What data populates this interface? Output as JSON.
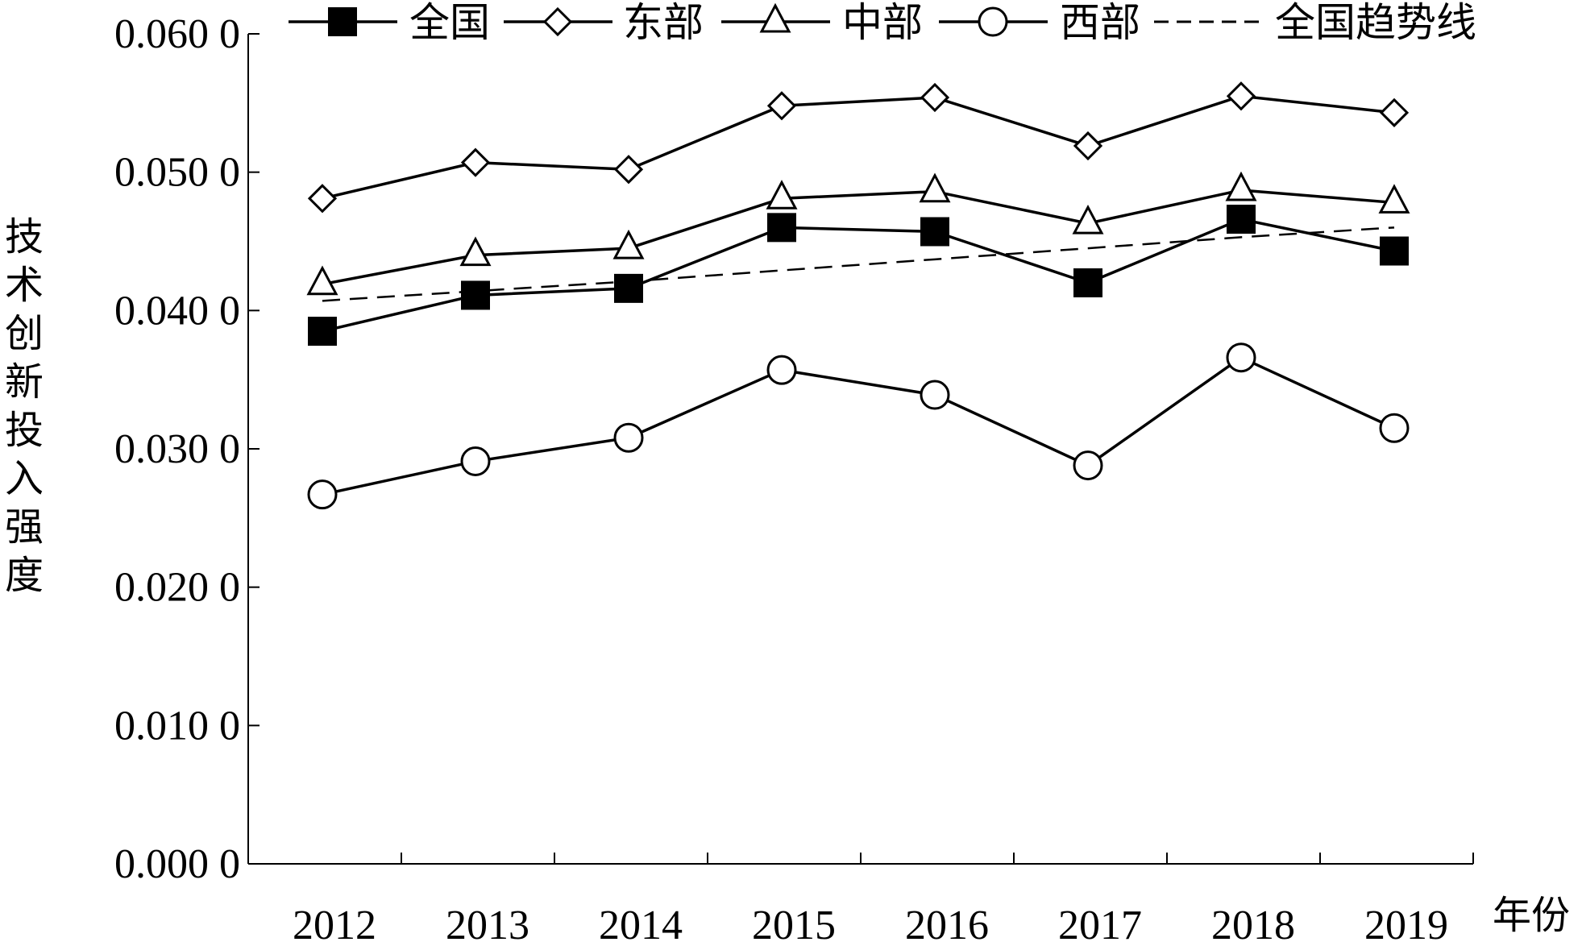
{
  "chart_data": {
    "type": "line",
    "title": "",
    "xlabel": "年份",
    "ylabel": "技术创新投入强度",
    "categories": [
      "2012",
      "2013",
      "2014",
      "2015",
      "2016",
      "2017",
      "2018",
      "2019"
    ],
    "y_tick_labels": [
      "0.000 0",
      "0.010 0",
      "0.020 0",
      "0.030 0",
      "0.040 0",
      "0.050 0",
      "0.060 0"
    ],
    "ylim": [
      0,
      0.06
    ],
    "grid": false,
    "legend_position": "top",
    "series": [
      {
        "name": "全国",
        "marker": "filled-square",
        "style": "solid",
        "values": [
          0.0385,
          0.0411,
          0.0416,
          0.046,
          0.0457,
          0.042,
          0.0466,
          0.0443
        ]
      },
      {
        "name": "东部",
        "marker": "diamond",
        "style": "solid",
        "values": [
          0.0481,
          0.0507,
          0.0502,
          0.0548,
          0.0554,
          0.0519,
          0.0555,
          0.0543
        ]
      },
      {
        "name": "中部",
        "marker": "triangle",
        "style": "solid",
        "values": [
          0.0419,
          0.044,
          0.0445,
          0.0481,
          0.0486,
          0.0463,
          0.0487,
          0.0478
        ]
      },
      {
        "name": "西部",
        "marker": "circle",
        "style": "solid",
        "values": [
          0.0267,
          0.0291,
          0.0308,
          0.0357,
          0.0339,
          0.0288,
          0.0366,
          0.0315
        ]
      },
      {
        "name": "全国趋势线",
        "marker": "none",
        "style": "dashed",
        "values": [
          0.0407,
          0.0414,
          0.0421,
          0.0429,
          0.0437,
          0.0445,
          0.0453,
          0.046
        ]
      }
    ]
  }
}
